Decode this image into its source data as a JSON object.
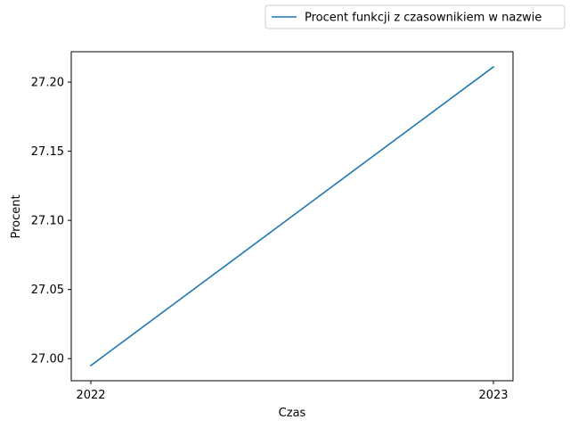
{
  "chart_data": {
    "type": "line",
    "title": "",
    "xlabel": "Czas",
    "ylabel": "Procent",
    "x": [
      "2022",
      "2023"
    ],
    "series": [
      {
        "name": "Procent funkcji z czasownikiem w nazwie",
        "values": [
          26.995,
          27.211
        ],
        "color": "#1f77b4"
      }
    ],
    "yticks": [
      27.0,
      27.05,
      27.1,
      27.15,
      27.2
    ],
    "ytick_labels": [
      "27.00",
      "27.05",
      "27.10",
      "27.15",
      "27.20"
    ],
    "ylim": [
      26.984,
      27.222
    ],
    "grid": false,
    "legend_position": "top-right"
  }
}
